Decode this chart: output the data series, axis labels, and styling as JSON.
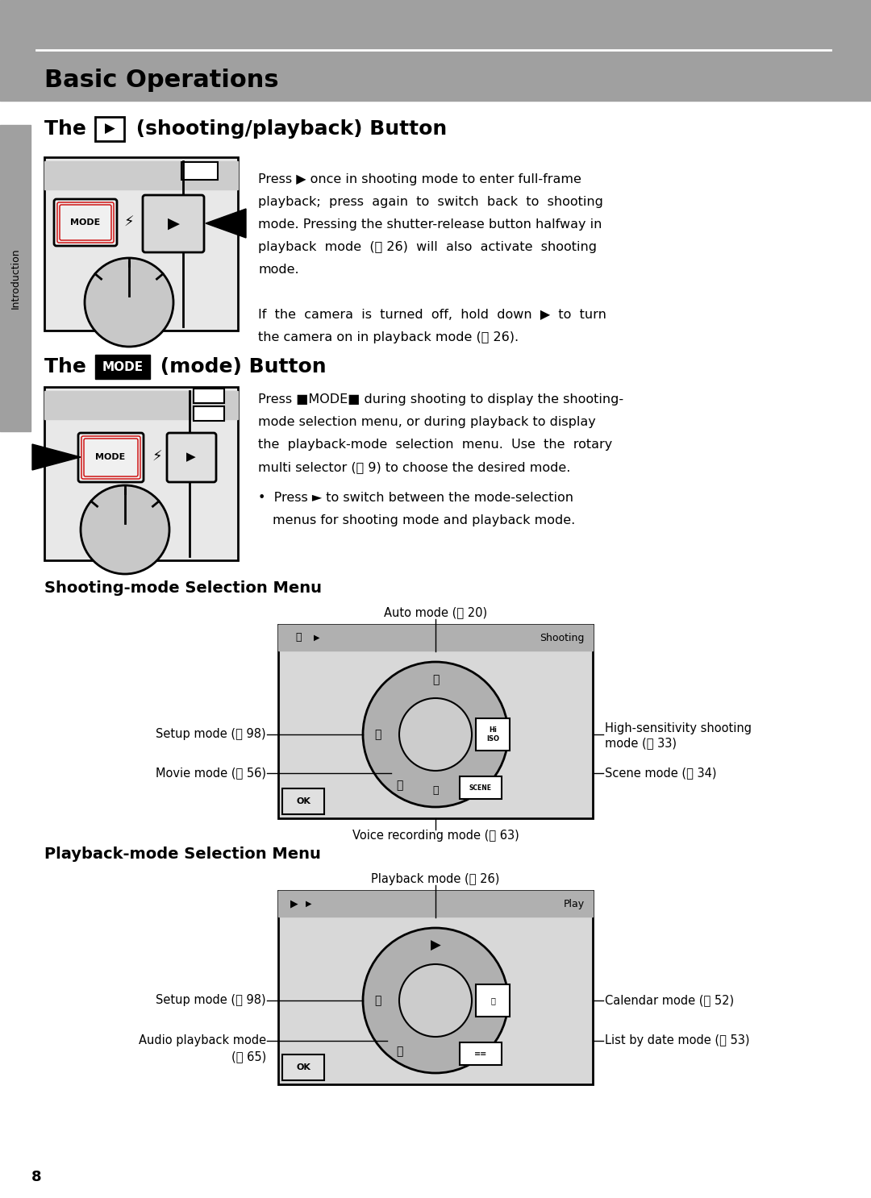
{
  "page_bg": "#ffffff",
  "header_bg": "#a0a0a0",
  "header_text": "Basic Operations",
  "header_line_color": "#ffffff",
  "sidebar_bg": "#a0a0a0",
  "sidebar_text": "Introduction",
  "page_number": "8",
  "section1_title_pre": "The ",
  "section1_title_post": " (shooting/playback) Button",
  "section1_body1_line1": "Press ► once in shooting mode to enter full-frame",
  "section1_body1_line2": "playback;  press  again  to  switch  back  to  shooting",
  "section1_body1_line3": "mode. Pressing the shutter-release button halfway in",
  "section1_body1_line4": "playback  mode  (Ⓜ 26)  will  also  activate  shooting",
  "section1_body1_line5": "mode.",
  "section1_body2_line1": "If  the  camera  is  turned  off,  hold  down  ►  to  turn",
  "section1_body2_line2": "the camera on in playback mode (Ⓜ 26).",
  "section2_title_pre": "The ",
  "section2_title_mode": "MODE",
  "section2_title_post": " (mode) Button",
  "section2_body1_line1": "Press ■MODE■ during shooting to display the shooting-",
  "section2_body1_line2": "mode selection menu, or during playback to display",
  "section2_body1_line3": "the  playback-mode  selection  menu.  Use  the  rotary",
  "section2_body1_line4": "multi selector (Ⓜ 9) to choose the desired mode.",
  "section2_bullet_line1": "•  Press ► to switch between the mode-selection",
  "section2_bullet_line2": "   menus for shooting mode and playback mode.",
  "section3_title": "Shooting-mode Selection Menu",
  "section4_title": "Playback-mode Selection Menu",
  "label_auto_mode": "Auto mode (Ⓜ 20)",
  "label_setup_shooting": "Setup mode (Ⓜ 98)",
  "label_movie": "Movie mode (Ⓜ 56)",
  "label_voice_rec": "Voice recording mode (Ⓜ 63)",
  "label_hi_sensitivity_1": "High-sensitivity shooting",
  "label_hi_sensitivity_2": "mode (Ⓜ 33)",
  "label_scene": "Scene mode (Ⓜ 34)",
  "label_playback_mode": "Playback mode (Ⓜ 26)",
  "label_setup_playback": "Setup mode (Ⓜ 98)",
  "label_audio_1": "Audio playback mode",
  "label_audio_2": "(Ⓜ 65)",
  "label_calendar": "Calendar mode (Ⓜ 52)",
  "label_list_by_date": "List by date mode (Ⓜ 53)"
}
